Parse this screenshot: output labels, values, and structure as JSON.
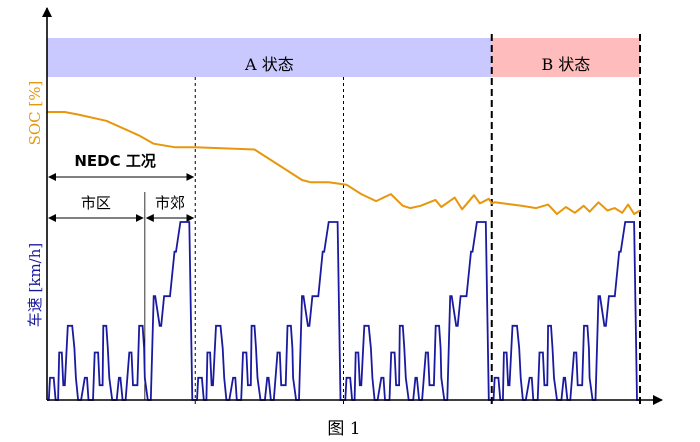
{
  "figure_caption": "图 1",
  "chart_data": {
    "type": "line",
    "title": "",
    "ylabel_top": "SOC [%]",
    "ylabel_bottom": "车速 [km/h]",
    "xlabel": "",
    "grid": false,
    "state_bands": [
      {
        "label": "A 状态",
        "color": "#c9c9ff",
        "start": 0.0,
        "end": 3.0
      },
      {
        "label": "B 状态",
        "color": "#ffbcbc",
        "start": 3.0,
        "end": 4.0
      }
    ],
    "cycle_annotations": [
      {
        "label": "NEDC 工况",
        "start": 0.0,
        "end": 1.0
      },
      {
        "label": "市区",
        "start": 0.0,
        "end": 0.66
      },
      {
        "label": "市郊",
        "start": 0.66,
        "end": 1.0
      }
    ],
    "cycle_count": 4,
    "soc_color": "#e8960c",
    "speed_color": "#1a1aa0",
    "series": [
      {
        "name": "SOC",
        "x": [
          0.0,
          0.12,
          0.22,
          0.4,
          0.62,
          0.72,
          0.86,
          1.0,
          1.4,
          1.72,
          1.78,
          1.9,
          2.02,
          2.12,
          2.22,
          2.32,
          2.4,
          2.45,
          2.52,
          2.56,
          2.62,
          2.66,
          2.75,
          2.8,
          2.88,
          2.92,
          2.98,
          3.0,
          3.02,
          3.2,
          3.3,
          3.38,
          3.44,
          3.5,
          3.56,
          3.62,
          3.66,
          3.72,
          3.78,
          3.83,
          3.88,
          3.92,
          3.96,
          4.0
        ],
        "values": [
          72.0,
          72.0,
          71.5,
          70.5,
          68.0,
          66.6,
          66.0,
          66.0,
          65.6,
          60.4,
          60.0,
          60.0,
          59.6,
          58.0,
          56.8,
          58.0,
          56.0,
          55.6,
          56.0,
          56.4,
          57.0,
          55.8,
          57.4,
          55.4,
          57.8,
          56.4,
          57.2,
          56.4,
          56.6,
          56.0,
          55.6,
          56.2,
          54.6,
          55.8,
          54.8,
          56.0,
          55.0,
          56.6,
          55.2,
          55.6,
          54.8,
          56.2,
          54.6,
          55.2
        ]
      },
      {
        "name": "车速",
        "cycle_x": [
          0.0,
          0.012,
          0.02,
          0.045,
          0.058,
          0.075,
          0.082,
          0.1,
          0.11,
          0.12,
          0.14,
          0.17,
          0.185,
          0.195,
          0.21,
          0.23,
          0.255,
          0.27,
          0.28,
          0.31,
          0.322,
          0.345,
          0.355,
          0.375,
          0.38,
          0.4,
          0.41,
          0.42,
          0.44,
          0.47,
          0.485,
          0.495,
          0.51,
          0.53,
          0.555,
          0.57,
          0.58,
          0.61,
          0.622,
          0.645,
          0.655,
          0.66,
          0.68,
          0.7,
          0.72,
          0.73,
          0.76,
          0.77,
          0.79,
          0.8,
          0.83,
          0.86,
          0.87,
          0.9,
          0.91,
          0.93,
          0.945,
          0.96,
          0.98,
          1.0
        ],
        "cycle_values": [
          0,
          0,
          15,
          15,
          0,
          0,
          32,
          32,
          10,
          10,
          50,
          50,
          35,
          15,
          0,
          0,
          15,
          15,
          0,
          0,
          32,
          32,
          10,
          10,
          50,
          50,
          35,
          15,
          0,
          0,
          15,
          15,
          0,
          0,
          32,
          32,
          10,
          10,
          50,
          50,
          35,
          15,
          0,
          0,
          70,
          70,
          50,
          50,
          70,
          70,
          70,
          100,
          100,
          120,
          120,
          120,
          120,
          120,
          0,
          0
        ]
      }
    ]
  }
}
